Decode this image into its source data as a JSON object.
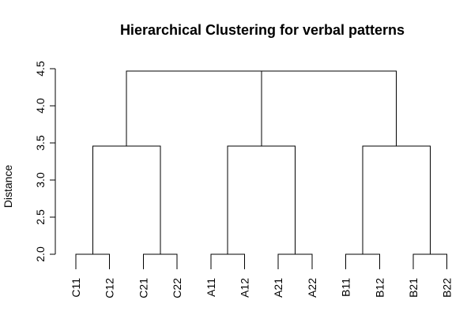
{
  "chart_data": {
    "type": "dendrogram",
    "title": "Hierarchical Clustering for verbal patterns",
    "xlabel": "",
    "ylabel": "Distance",
    "ylim": [
      2.0,
      4.5
    ],
    "yticks": [
      "2.0",
      "2.5",
      "3.0",
      "3.5",
      "4.0",
      "4.5"
    ],
    "leaves": [
      "C11",
      "C12",
      "C21",
      "C22",
      "A11",
      "A12",
      "A21",
      "A22",
      "B11",
      "B12",
      "B21",
      "B22"
    ],
    "leaf_hang_height": 1.8,
    "merges": [
      {
        "left": "C11",
        "right": "C12",
        "height": 2.0
      },
      {
        "left": "C21",
        "right": "C22",
        "height": 2.0
      },
      {
        "left": "A11",
        "right": "A12",
        "height": 2.0
      },
      {
        "left": "A21",
        "right": "A22",
        "height": 2.0
      },
      {
        "left": "B11",
        "right": "B12",
        "height": 2.0
      },
      {
        "left": "B21",
        "right": "B22",
        "height": 2.0
      },
      {
        "left": 0,
        "right": 1,
        "height": 3.46
      },
      {
        "left": 2,
        "right": 3,
        "height": 3.46
      },
      {
        "left": 4,
        "right": 5,
        "height": 3.46
      },
      {
        "left": 7,
        "right": 8,
        "height": 4.47
      },
      {
        "left": 6,
        "right": 9,
        "height": 4.47
      }
    ],
    "grid": false,
    "legend": "none"
  }
}
